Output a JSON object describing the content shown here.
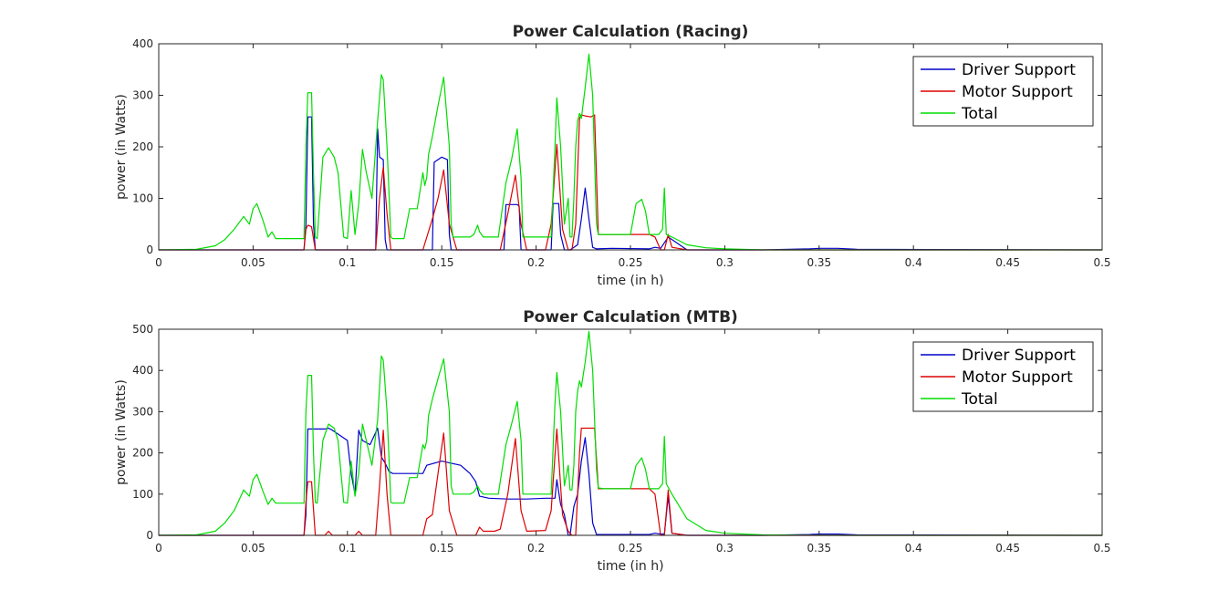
{
  "chart_data": [
    {
      "type": "line",
      "title": "Power Calculation (Racing)",
      "xlabel": "time (in h)",
      "ylabel": "power (in Watts)",
      "xlim": [
        0,
        0.5
      ],
      "ylim": [
        0,
        400
      ],
      "xticks": [
        0,
        0.05,
        0.1,
        0.15,
        0.2,
        0.25,
        0.3,
        0.35,
        0.4,
        0.45,
        0.5
      ],
      "xtick_labels": [
        "0",
        "0.05",
        "0.1",
        "0.15",
        "0.2",
        "0.25",
        "0.3",
        "0.35",
        "0.4",
        "0.45",
        "0.5"
      ],
      "yticks": [
        0,
        100,
        200,
        300,
        400
      ],
      "ytick_labels": [
        "0",
        "100",
        "200",
        "300",
        "400"
      ],
      "grid": false,
      "legend_position": "top-right",
      "series": [
        {
          "name": "Driver Support",
          "color": "#0000cc",
          "x": [
            0,
            0.077,
            0.078,
            0.079,
            0.081,
            0.082,
            0.083,
            0.115,
            0.116,
            0.117,
            0.119,
            0.12,
            0.121,
            0.145,
            0.146,
            0.15,
            0.153,
            0.154,
            0.155,
            0.183,
            0.184,
            0.19,
            0.191,
            0.192,
            0.208,
            0.209,
            0.212,
            0.213,
            0.215,
            0.218,
            0.22,
            0.222,
            0.224,
            0.226,
            0.228,
            0.23,
            0.232,
            0.24,
            0.26,
            0.263,
            0.266,
            0.27,
            0.28,
            0.32,
            0.345,
            0.35,
            0.36,
            0.37,
            0.5
          ],
          "y": [
            0,
            0,
            50,
            258,
            258,
            50,
            0,
            0,
            235,
            180,
            175,
            20,
            0,
            0,
            170,
            180,
            175,
            30,
            0,
            0,
            88,
            88,
            85,
            0,
            0,
            90,
            90,
            30,
            0,
            0,
            5,
            10,
            60,
            120,
            60,
            5,
            2,
            3,
            2,
            5,
            3,
            25,
            0,
            0,
            2,
            3,
            3,
            1,
            0
          ]
        },
        {
          "name": "Motor Support",
          "color": "#dd0000",
          "x": [
            0,
            0.077,
            0.078,
            0.079,
            0.081,
            0.083,
            0.115,
            0.117,
            0.119,
            0.121,
            0.123,
            0.14,
            0.145,
            0.148,
            0.151,
            0.154,
            0.158,
            0.181,
            0.185,
            0.189,
            0.192,
            0.195,
            0.205,
            0.208,
            0.211,
            0.214,
            0.217,
            0.219,
            0.221,
            0.223,
            0.224,
            0.226,
            0.229,
            0.231,
            0.233,
            0.24,
            0.25,
            0.26,
            0.263,
            0.266,
            0.268,
            0.27,
            0.272,
            0.28,
            0.5
          ],
          "y": [
            0,
            0,
            40,
            48,
            45,
            0,
            0,
            100,
            160,
            70,
            0,
            0,
            60,
            100,
            155,
            50,
            0,
            0,
            70,
            145,
            50,
            0,
            0,
            50,
            205,
            40,
            0,
            0,
            50,
            255,
            262,
            260,
            258,
            262,
            30,
            30,
            30,
            30,
            25,
            0,
            0,
            30,
            5,
            0,
            0
          ]
        },
        {
          "name": "Total",
          "color": "#00dd00",
          "x": [
            0,
            0.02,
            0.03,
            0.035,
            0.04,
            0.045,
            0.048,
            0.05,
            0.052,
            0.055,
            0.058,
            0.06,
            0.062,
            0.077,
            0.078,
            0.079,
            0.081,
            0.082,
            0.083,
            0.084,
            0.087,
            0.09,
            0.093,
            0.095,
            0.098,
            0.1,
            0.102,
            0.104,
            0.106,
            0.108,
            0.11,
            0.113,
            0.116,
            0.118,
            0.119,
            0.121,
            0.123,
            0.124,
            0.125,
            0.13,
            0.133,
            0.137,
            0.14,
            0.141,
            0.142,
            0.143,
            0.145,
            0.148,
            0.151,
            0.154,
            0.155,
            0.156,
            0.16,
            0.165,
            0.167,
            0.169,
            0.17,
            0.172,
            0.18,
            0.184,
            0.187,
            0.19,
            0.192,
            0.193,
            0.2,
            0.208,
            0.21,
            0.211,
            0.213,
            0.215,
            0.217,
            0.218,
            0.219,
            0.22,
            0.221,
            0.222,
            0.223,
            0.224,
            0.226,
            0.228,
            0.23,
            0.232,
            0.233,
            0.236,
            0.24,
            0.245,
            0.25,
            0.253,
            0.256,
            0.258,
            0.26,
            0.262,
            0.265,
            0.267,
            0.268,
            0.269,
            0.272,
            0.28,
            0.29,
            0.3,
            0.32,
            0.35,
            0.5
          ],
          "y": [
            0,
            1,
            8,
            20,
            40,
            65,
            50,
            80,
            90,
            60,
            25,
            35,
            22,
            22,
            200,
            305,
            305,
            150,
            25,
            22,
            180,
            198,
            180,
            150,
            25,
            22,
            115,
            30,
            90,
            195,
            150,
            100,
            250,
            340,
            330,
            200,
            25,
            22,
            22,
            22,
            80,
            80,
            150,
            125,
            140,
            185,
            220,
            280,
            335,
            200,
            50,
            25,
            25,
            25,
            30,
            48,
            35,
            25,
            25,
            130,
            175,
            235,
            140,
            25,
            25,
            25,
            200,
            295,
            200,
            50,
            100,
            25,
            25,
            100,
            200,
            250,
            265,
            255,
            315,
            380,
            300,
            50,
            30,
            30,
            30,
            30,
            30,
            90,
            98,
            75,
            30,
            30,
            30,
            40,
            120,
            30,
            25,
            10,
            4,
            2,
            0,
            0,
            0
          ]
        }
      ]
    },
    {
      "type": "line",
      "title": "Power Calculation (MTB)",
      "xlabel": "time (in h)",
      "ylabel": "power (in Watts)",
      "xlim": [
        0,
        0.5
      ],
      "ylim": [
        0,
        500
      ],
      "xticks": [
        0,
        0.05,
        0.1,
        0.15,
        0.2,
        0.25,
        0.3,
        0.35,
        0.4,
        0.45,
        0.5
      ],
      "xtick_labels": [
        "0",
        "0.05",
        "0.1",
        "0.15",
        "0.2",
        "0.25",
        "0.3",
        "0.35",
        "0.4",
        "0.45",
        "0.5"
      ],
      "yticks": [
        0,
        100,
        200,
        300,
        400,
        500
      ],
      "ytick_labels": [
        "0",
        "100",
        "200",
        "300",
        "400",
        "500"
      ],
      "grid": false,
      "legend_position": "top-right",
      "series": [
        {
          "name": "Driver Support",
          "color": "#0000cc",
          "x": [
            0,
            0.077,
            0.078,
            0.079,
            0.088,
            0.09,
            0.092,
            0.1,
            0.102,
            0.104,
            0.106,
            0.108,
            0.112,
            0.114,
            0.116,
            0.118,
            0.12,
            0.122,
            0.124,
            0.14,
            0.142,
            0.15,
            0.155,
            0.16,
            0.165,
            0.168,
            0.17,
            0.175,
            0.185,
            0.195,
            0.205,
            0.208,
            0.21,
            0.211,
            0.213,
            0.215,
            0.217,
            0.218,
            0.22,
            0.222,
            0.224,
            0.226,
            0.228,
            0.23,
            0.232,
            0.24,
            0.26,
            0.263,
            0.266,
            0.268,
            0.27,
            0.272,
            0.28,
            0.32,
            0.345,
            0.35,
            0.36,
            0.37,
            0.5
          ],
          "y": [
            0,
            0,
            50,
            258,
            258,
            260,
            255,
            230,
            150,
            100,
            255,
            230,
            220,
            240,
            260,
            190,
            175,
            155,
            150,
            150,
            170,
            180,
            175,
            170,
            150,
            130,
            95,
            90,
            88,
            88,
            90,
            90,
            90,
            135,
            75,
            50,
            0,
            0,
            70,
            100,
            180,
            237,
            150,
            30,
            2,
            2,
            2,
            5,
            3,
            3,
            95,
            5,
            0,
            0,
            2,
            3,
            3,
            1,
            0
          ]
        },
        {
          "name": "Motor Support",
          "color": "#dd0000",
          "x": [
            0,
            0.077,
            0.078,
            0.079,
            0.081,
            0.083,
            0.088,
            0.09,
            0.092,
            0.104,
            0.106,
            0.108,
            0.115,
            0.117,
            0.119,
            0.121,
            0.123,
            0.14,
            0.142,
            0.145,
            0.148,
            0.151,
            0.154,
            0.158,
            0.168,
            0.17,
            0.172,
            0.178,
            0.181,
            0.185,
            0.189,
            0.192,
            0.195,
            0.205,
            0.208,
            0.211,
            0.214,
            0.217,
            0.219,
            0.221,
            0.223,
            0.224,
            0.226,
            0.229,
            0.231,
            0.233,
            0.24,
            0.25,
            0.26,
            0.263,
            0.266,
            0.268,
            0.27,
            0.272,
            0.28,
            0.5
          ],
          "y": [
            0,
            0,
            80,
            130,
            130,
            0,
            0,
            10,
            0,
            0,
            10,
            0,
            0,
            120,
            255,
            100,
            0,
            0,
            40,
            50,
            150,
            248,
            60,
            0,
            0,
            20,
            10,
            10,
            15,
            100,
            235,
            60,
            10,
            12,
            60,
            258,
            50,
            10,
            0,
            0,
            200,
            260,
            260,
            260,
            260,
            113,
            113,
            113,
            113,
            100,
            0,
            0,
            110,
            5,
            0,
            0
          ]
        },
        {
          "name": "Total",
          "color": "#00dd00",
          "x": [
            0,
            0.02,
            0.03,
            0.035,
            0.04,
            0.045,
            0.048,
            0.05,
            0.052,
            0.055,
            0.058,
            0.06,
            0.062,
            0.077,
            0.078,
            0.079,
            0.081,
            0.082,
            0.083,
            0.084,
            0.087,
            0.09,
            0.093,
            0.095,
            0.098,
            0.1,
            0.102,
            0.104,
            0.106,
            0.108,
            0.11,
            0.113,
            0.116,
            0.118,
            0.119,
            0.121,
            0.123,
            0.124,
            0.125,
            0.13,
            0.133,
            0.137,
            0.14,
            0.141,
            0.142,
            0.143,
            0.145,
            0.148,
            0.151,
            0.154,
            0.155,
            0.156,
            0.16,
            0.165,
            0.167,
            0.169,
            0.17,
            0.172,
            0.18,
            0.184,
            0.187,
            0.19,
            0.192,
            0.193,
            0.2,
            0.208,
            0.21,
            0.211,
            0.213,
            0.215,
            0.217,
            0.218,
            0.219,
            0.22,
            0.221,
            0.222,
            0.223,
            0.224,
            0.226,
            0.228,
            0.23,
            0.232,
            0.233,
            0.236,
            0.24,
            0.245,
            0.25,
            0.253,
            0.256,
            0.258,
            0.26,
            0.262,
            0.265,
            0.267,
            0.268,
            0.269,
            0.272,
            0.28,
            0.29,
            0.3,
            0.32,
            0.35,
            0.5
          ],
          "y": [
            0,
            1,
            10,
            30,
            60,
            110,
            95,
            135,
            148,
            110,
            75,
            90,
            78,
            78,
            300,
            388,
            388,
            200,
            80,
            78,
            230,
            270,
            260,
            230,
            80,
            78,
            180,
            95,
            150,
            270,
            230,
            170,
            280,
            435,
            425,
            300,
            80,
            78,
            78,
            78,
            140,
            140,
            220,
            210,
            230,
            290,
            330,
            380,
            428,
            300,
            120,
            100,
            100,
            100,
            105,
            120,
            110,
            100,
            100,
            220,
            270,
            325,
            230,
            100,
            100,
            100,
            320,
            395,
            300,
            120,
            170,
            110,
            110,
            170,
            300,
            350,
            375,
            360,
            420,
            495,
            400,
            160,
            115,
            113,
            113,
            113,
            113,
            170,
            188,
            160,
            113,
            113,
            113,
            125,
            240,
            125,
            100,
            40,
            12,
            5,
            1,
            0,
            0
          ]
        }
      ]
    }
  ]
}
